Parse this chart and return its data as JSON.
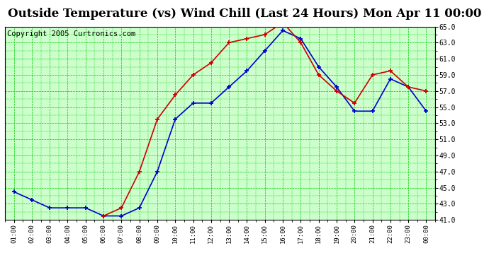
{
  "title": "Outside Temperature (vs) Wind Chill (Last 24 Hours) Mon Apr 11 00:00",
  "copyright": "Copyright 2005 Curtronics.com",
  "x_labels": [
    "01:00",
    "02:00",
    "03:00",
    "04:00",
    "05:00",
    "06:00",
    "07:00",
    "08:00",
    "09:00",
    "10:00",
    "11:00",
    "12:00",
    "13:00",
    "14:00",
    "15:00",
    "16:00",
    "17:00",
    "18:00",
    "19:00",
    "20:00",
    "21:00",
    "22:00",
    "23:00",
    "00:00"
  ],
  "ylim": [
    41.0,
    65.0
  ],
  "yticks": [
    41.0,
    43.0,
    45.0,
    47.0,
    49.0,
    51.0,
    53.0,
    55.0,
    57.0,
    59.0,
    61.0,
    63.0,
    65.0
  ],
  "blue_data": [
    44.5,
    43.5,
    42.5,
    42.5,
    42.5,
    41.5,
    41.5,
    42.5,
    47.0,
    53.5,
    55.5,
    55.5,
    57.5,
    59.5,
    62.0,
    64.5,
    63.5,
    60.0,
    57.5,
    54.5,
    54.5,
    58.5,
    57.5,
    54.5
  ],
  "red_data": [
    null,
    null,
    null,
    null,
    null,
    41.5,
    42.5,
    47.0,
    53.5,
    56.5,
    59.0,
    60.5,
    63.0,
    63.5,
    64.0,
    65.5,
    63.0,
    59.0,
    57.0,
    55.5,
    59.0,
    59.5,
    57.5,
    57.0
  ],
  "blue_color": "#0000cc",
  "red_color": "#cc0000",
  "bg_color": "#ccffcc",
  "grid_color": "#00cc00",
  "title_fontsize": 12,
  "copyright_fontsize": 7.5
}
